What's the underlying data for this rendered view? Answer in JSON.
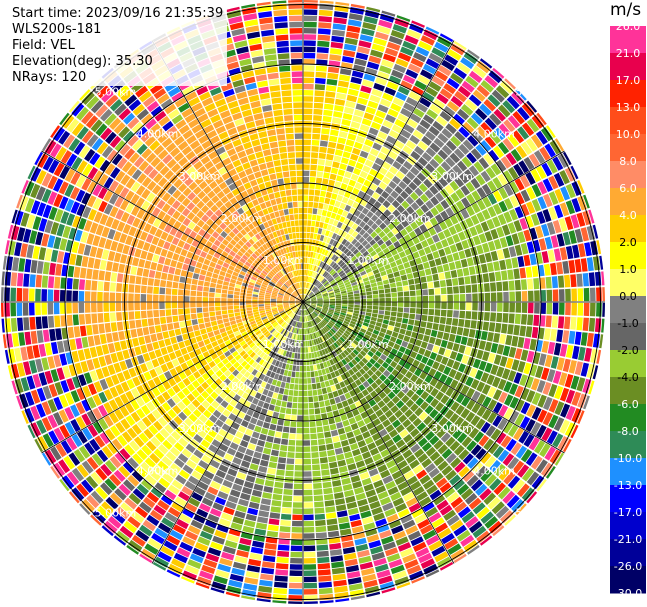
{
  "header": {
    "start_time": "Start time: 2023/09/16 21:35:39",
    "instrument": "WLS200s-181",
    "field": "Field: VEL",
    "elevation": "Elevation(deg): 35.30",
    "nrays": "NRays: 120"
  },
  "colorbar": {
    "unit": "m/s",
    "levels": [
      "26.0",
      "21.0",
      "17.0",
      "13.0",
      "10.0",
      "8.0",
      "6.0",
      "4.0",
      "2.0",
      "1.0",
      "0.0",
      "-1.0",
      "-2.0",
      "-4.0",
      "-6.0",
      "-8.0",
      "-10.0",
      "-13.0",
      "-17.0",
      "-21.0",
      "-26.0",
      "-30.0"
    ],
    "colors": [
      "#ff3399",
      "#e8004d",
      "#ff2200",
      "#ff4d1a",
      "#ff6633",
      "#ff8c66",
      "#ffaa33",
      "#ffcc00",
      "#ffff00",
      "#ffff66",
      "#808080",
      "#666666",
      "#99cc33",
      "#6b8e23",
      "#228b22",
      "#2e8b57",
      "#1e90ff",
      "#0000ff",
      "#0000cd",
      "#000099",
      "#000066"
    ]
  },
  "chart_data": {
    "type": "heatmap",
    "projection": "polar-PPI",
    "nrays": 120,
    "range_rings_km": [
      "1.00km",
      "2.00km",
      "3.00km",
      "4.00km",
      "5.00km"
    ],
    "velocity_range": [
      -30,
      30
    ],
    "pattern": {
      "positive_sector_deg": [
        300,
        35
      ],
      "negative_sector_deg": [
        90,
        215
      ],
      "noise_beyond_km": 3.8
    }
  }
}
